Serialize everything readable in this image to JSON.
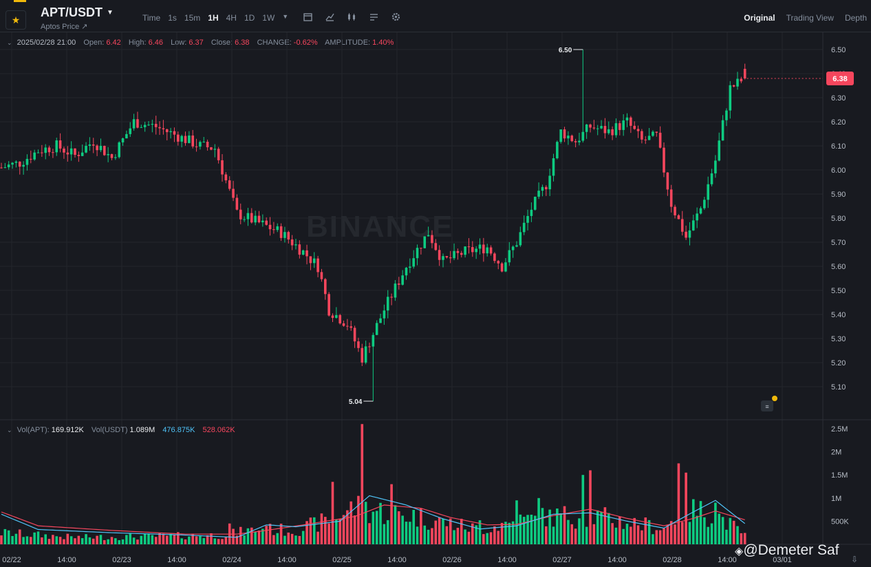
{
  "header": {
    "symbol": "APT/USDT",
    "subtitle": "Aptos Price ↗",
    "intervals": [
      "Time",
      "1s",
      "15m",
      "1H",
      "4H",
      "1D",
      "1W"
    ],
    "active_interval": "1H",
    "views": [
      "Original",
      "Trading View",
      "Depth"
    ],
    "active_view": "Original"
  },
  "ohlc": {
    "datetime": "2025/02/28 21:00",
    "open_label": "Open:",
    "open": "6.42",
    "high_label": "High:",
    "high": "6.46",
    "low_label": "Low:",
    "low": "6.37",
    "close_label": "Close:",
    "close": "6.38",
    "change_label": "CHANGE:",
    "change": "-0.62%",
    "amplitude_label": "AMPLITUDE:",
    "amplitude": "1.40%"
  },
  "volume": {
    "label_apt": "Vol(APT):",
    "apt": "169.912K",
    "label_usdt": "Vol(USDT)",
    "usdt": "1.089M",
    "ma1": "476.875K",
    "ma2": "528.062K"
  },
  "watermark": "BINANCE",
  "credit": "@Demeter Saf",
  "colors": {
    "up": "#0ecb81",
    "down": "#f6465d",
    "bg": "#181a20",
    "ma1": "#4fc3f7",
    "ma2": "#f6465d"
  },
  "chart_data": {
    "type": "candlestick",
    "price_axis": [
      "6.50",
      "6.40",
      "6.30",
      "6.20",
      "6.10",
      "6.00",
      "5.90",
      "5.80",
      "5.70",
      "5.60",
      "5.50",
      "5.40",
      "5.30",
      "5.20",
      "5.10"
    ],
    "volume_axis": [
      "2.5M",
      "2M",
      "1.5M",
      "1M",
      "500K"
    ],
    "x_labels": [
      "02/22",
      "14:00",
      "02/23",
      "14:00",
      "02/24",
      "14:00",
      "02/25",
      "14:00",
      "02/26",
      "14:00",
      "02/27",
      "14:00",
      "02/28",
      "14:00",
      "03/01"
    ],
    "last_price": "6.38",
    "high_marker": "6.50",
    "low_marker": "5.04",
    "price_anchors": [
      [
        0,
        6.01
      ],
      [
        5,
        6.03
      ],
      [
        10,
        6.08
      ],
      [
        15,
        6.1
      ],
      [
        20,
        6.06
      ],
      [
        25,
        6.12
      ],
      [
        30,
        6.05
      ],
      [
        36,
        6.2
      ],
      [
        42,
        6.18
      ],
      [
        48,
        6.14
      ],
      [
        54,
        6.1
      ],
      [
        58,
        6.09
      ],
      [
        60,
        6.0
      ],
      [
        64,
        5.82
      ],
      [
        70,
        5.78
      ],
      [
        76,
        5.74
      ],
      [
        82,
        5.66
      ],
      [
        86,
        5.6
      ],
      [
        89,
        5.42
      ],
      [
        94,
        5.36
      ],
      [
        98,
        5.22
      ],
      [
        104,
        5.42
      ],
      [
        110,
        5.6
      ],
      [
        116,
        5.74
      ],
      [
        120,
        5.62
      ],
      [
        126,
        5.66
      ],
      [
        132,
        5.68
      ],
      [
        136,
        5.6
      ],
      [
        140,
        5.7
      ],
      [
        144,
        5.84
      ],
      [
        148,
        5.94
      ],
      [
        152,
        6.16
      ],
      [
        156,
        6.12
      ],
      [
        160,
        6.18
      ],
      [
        165,
        6.16
      ],
      [
        170,
        6.2
      ],
      [
        174,
        6.12
      ],
      [
        178,
        6.14
      ],
      [
        182,
        5.86
      ],
      [
        186,
        5.72
      ],
      [
        190,
        5.84
      ],
      [
        194,
        6.04
      ],
      [
        198,
        6.34
      ],
      [
        202,
        6.38
      ]
    ],
    "volume_anchors": [
      [
        0,
        250000
      ],
      [
        20,
        150000
      ],
      [
        40,
        170000
      ],
      [
        60,
        200000
      ],
      [
        70,
        330000
      ],
      [
        80,
        300000
      ],
      [
        88,
        500000
      ],
      [
        96,
        800000
      ],
      [
        104,
        700000
      ],
      [
        112,
        620000
      ],
      [
        120,
        480000
      ],
      [
        130,
        320000
      ],
      [
        140,
        500000
      ],
      [
        150,
        600000
      ],
      [
        160,
        620000
      ],
      [
        170,
        480000
      ],
      [
        180,
        350000
      ],
      [
        186,
        750000
      ],
      [
        194,
        650000
      ],
      [
        202,
        200000
      ]
    ],
    "volume_spikes": [
      [
        62,
        450000
      ],
      [
        72,
        400000
      ],
      [
        90,
        1350000
      ],
      [
        98,
        2600000
      ],
      [
        106,
        1300000
      ],
      [
        130,
        520000
      ],
      [
        140,
        950000
      ],
      [
        146,
        1000000
      ],
      [
        158,
        1500000
      ],
      [
        160,
        1600000
      ],
      [
        184,
        1750000
      ],
      [
        186,
        1550000
      ],
      [
        194,
        900000
      ]
    ],
    "ma_line_1": [
      [
        0,
        650000
      ],
      [
        10,
        320000
      ],
      [
        30,
        250000
      ],
      [
        50,
        200000
      ],
      [
        64,
        150000
      ],
      [
        72,
        420000
      ],
      [
        80,
        380000
      ],
      [
        92,
        500000
      ],
      [
        100,
        1050000
      ],
      [
        110,
        850000
      ],
      [
        120,
        550000
      ],
      [
        130,
        330000
      ],
      [
        140,
        400000
      ],
      [
        150,
        650000
      ],
      [
        160,
        680000
      ],
      [
        170,
        500000
      ],
      [
        180,
        350000
      ],
      [
        188,
        700000
      ],
      [
        194,
        950000
      ],
      [
        202,
        450000
      ]
    ],
    "ma_line_2": [
      [
        0,
        700000
      ],
      [
        10,
        400000
      ],
      [
        30,
        300000
      ],
      [
        50,
        220000
      ],
      [
        64,
        220000
      ],
      [
        72,
        300000
      ],
      [
        82,
        420000
      ],
      [
        96,
        600000
      ],
      [
        104,
        850000
      ],
      [
        114,
        780000
      ],
      [
        122,
        580000
      ],
      [
        132,
        420000
      ],
      [
        140,
        430000
      ],
      [
        150,
        620000
      ],
      [
        160,
        760000
      ],
      [
        170,
        560000
      ],
      [
        180,
        400000
      ],
      [
        188,
        560000
      ],
      [
        194,
        720000
      ],
      [
        202,
        530000
      ]
    ]
  }
}
